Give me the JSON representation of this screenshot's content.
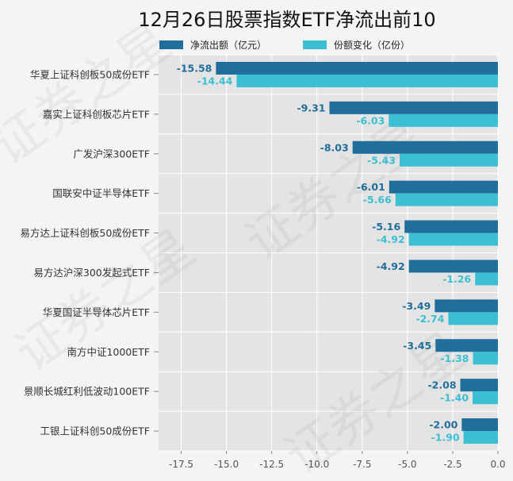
{
  "chart_data": {
    "type": "bar",
    "orientation": "horizontal",
    "title": "12月26日股票指数ETF净流出前10",
    "categories": [
      "华夏上证科创板50成份ETF",
      "嘉实上证科创板芯片ETF",
      "广发沪深300ETF",
      "国联安中证半导体ETF",
      "易方达上证科创板50成份ETF",
      "易方达沪深300发起式ETF",
      "华夏国证半导体芯片ETF",
      "南方中证1000ETF",
      "景顺长城红利低波动100ETF",
      "工银上证科创50成份ETF"
    ],
    "series": [
      {
        "name": "净流出额（亿元）",
        "color": "#1f6e9c",
        "values": [
          -15.58,
          -9.31,
          -8.03,
          -6.01,
          -5.16,
          -4.92,
          -3.49,
          -3.45,
          -2.08,
          -2.0
        ],
        "labels": [
          "-15.58",
          "-9.31",
          "-8.03",
          "-6.01",
          "-5.16",
          "-4.92",
          "-3.49",
          "-3.45",
          "-2.08",
          "-2.00"
        ]
      },
      {
        "name": "份额变化（亿份）",
        "color": "#3bbfd3",
        "values": [
          -14.44,
          -6.03,
          -5.43,
          -5.66,
          -4.92,
          -1.26,
          -2.74,
          -1.38,
          -1.4,
          -1.9
        ],
        "labels": [
          "-14.44",
          "-6.03",
          "-5.43",
          "-5.66",
          "-4.92",
          "-1.26",
          "-2.74",
          "-1.38",
          "-1.40",
          "-1.90"
        ]
      }
    ],
    "xlim": [
      -18.75,
      0
    ],
    "xticks": [
      -17.5,
      -15.0,
      -12.5,
      -10.0,
      -7.5,
      -5.0,
      -2.5,
      0.0
    ],
    "xtick_labels": [
      "-17.5",
      "-15.0",
      "-12.5",
      "-10.0",
      "-7.5",
      "-5.0",
      "-2.5",
      "0.0"
    ],
    "grid": true,
    "legend_position": "top"
  },
  "watermark": "证券之星"
}
